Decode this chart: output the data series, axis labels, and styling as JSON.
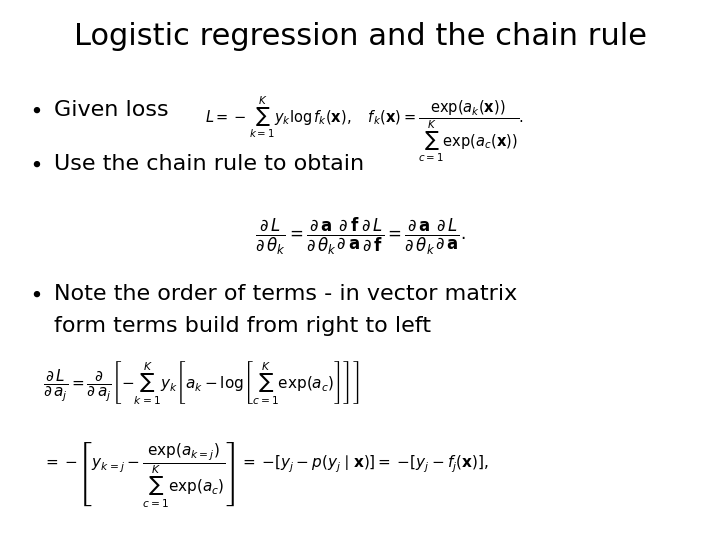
{
  "title": "Logistic regression and the chain rule",
  "background_color": "#ffffff",
  "text_color": "#000000",
  "title_fontsize": 22,
  "body_fontsize": 16,
  "figsize": [
    7.2,
    5.4
  ],
  "dpi": 100,
  "bullet1_text": "Given loss",
  "bullet2_text": "Use the chain rule to obtain",
  "bullet3_line1": "Note the order of terms - in vector matrix",
  "bullet3_line2": "form terms build from right to left"
}
